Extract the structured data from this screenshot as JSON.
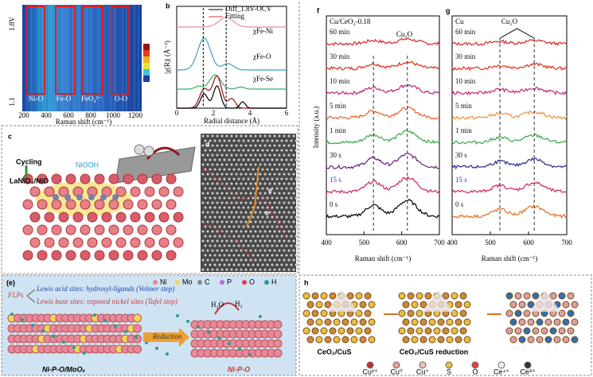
{
  "panel_a": {
    "letter": "a",
    "y_top": "1.8V",
    "y_bottom": "1.1",
    "bands": [
      "Ni-O",
      "Fe-O",
      "FeO₄²⁻",
      "O-O"
    ],
    "xticks": [
      "200",
      "400",
      "600",
      "800",
      "1000",
      "1200"
    ],
    "x_label": "Raman shift (cm⁻¹)"
  },
  "panel_b": {
    "letter": "b",
    "legend": [
      "Diff_1.8V-OCV",
      "Fitting"
    ],
    "curves": [
      "χFe-Ni",
      "χFe-O",
      "χFe-Se"
    ],
    "y_label": "|χ(R)| (Å⁻³)",
    "xticks": [
      "0",
      "2",
      "4",
      "6"
    ],
    "x_label": "Radial distance (Å)"
  },
  "panel_c": {
    "letter": "c",
    "labels": [
      "Cycling",
      "NiOOH",
      "LaNiO₃/NiO"
    ]
  },
  "panel_d": {
    "letter": "d",
    "labels": [
      "e",
      "e"
    ]
  },
  "panel_f": {
    "letter": "f",
    "title": "Cu/CeO₂-0.18",
    "peak": "Cu₂O",
    "traces": [
      "60 min",
      "30 min",
      "10 min",
      "5 min",
      "1 min",
      "30 s",
      "15 s",
      "0 s"
    ],
    "y_label": "Intensity (a.u.)",
    "xticks": [
      "400",
      "500",
      "600",
      "700"
    ],
    "x_label": "Raman shift (cm⁻¹)"
  },
  "panel_g": {
    "letter": "g",
    "title": "Cu",
    "peak": "Cu₂O",
    "traces": [
      "60 min",
      "30 min",
      "10 min",
      "5 min",
      "1 min",
      "30 s",
      "15 s",
      "0 s"
    ],
    "xticks": [
      "400",
      "500",
      "600",
      "700"
    ],
    "x_label": "Raman shift (cm⁻¹)"
  },
  "panel_e": {
    "letter": "(e)",
    "flps": "FLPs",
    "acid": "Lewis acid sites: hydroxyl-ligands (Volmer step)",
    "base": "Lewis base sites: exposed nickel sites (Tafel step)",
    "legend": [
      "Ni",
      "Mo",
      "C",
      "P",
      "O",
      "H"
    ],
    "h2o": "H₂O",
    "h2": "H₂",
    "arrow": "Reduction",
    "left": "Ni-P-O/MoOₓ",
    "right": "Ni-P-O"
  },
  "panel_h": {
    "letter": "h",
    "left": "CeO₂/CuS",
    "middle": "CeO₂/CuS reduction",
    "legend": [
      "Cu²⁺",
      "Cu⁰",
      "Cu⁺",
      "S",
      "O",
      "Ce⁴⁺",
      "Ce³⁺"
    ]
  }
}
